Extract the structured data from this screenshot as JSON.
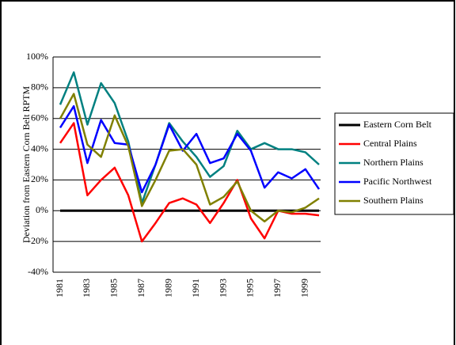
{
  "chart_data": {
    "type": "line",
    "y_label": "Deviation from Eastern Corn Belt RPTM",
    "categories": [
      "1981",
      null,
      "1983",
      null,
      "1985",
      null,
      "1987",
      null,
      "1989",
      null,
      "1991",
      null,
      "1993",
      null,
      "1995",
      null,
      "1997",
      null,
      "1999",
      null
    ],
    "series": [
      {
        "name": "Eastern Corn Belt",
        "color": "#000000",
        "values": [
          0,
          0,
          0,
          0,
          0,
          0,
          0,
          0,
          0,
          0,
          0,
          0,
          0,
          0,
          0,
          0,
          0,
          0,
          0,
          0
        ]
      },
      {
        "name": "Central Plains",
        "color": "#ff0000",
        "values": [
          44,
          57,
          10,
          20,
          28,
          10,
          -20,
          -8,
          5,
          8,
          4,
          -8,
          5,
          20,
          -5,
          -18,
          0,
          -2,
          -2,
          -3
        ]
      },
      {
        "name": "Northern Plains",
        "color": "#008080",
        "values": [
          69,
          90,
          56,
          83,
          70,
          45,
          5,
          30,
          57,
          45,
          35,
          22,
          29,
          52,
          40,
          44,
          40,
          40,
          38,
          30
        ]
      },
      {
        "name": "Pacific Northwest",
        "color": "#0000ff",
        "values": [
          54,
          68,
          31,
          59,
          44,
          43,
          12,
          30,
          56,
          39,
          50,
          31,
          34,
          50,
          39,
          15,
          25,
          21,
          27,
          14
        ]
      },
      {
        "name": "Southern Plains",
        "color": "#808000",
        "values": [
          60,
          76,
          43,
          35,
          62,
          42,
          3,
          20,
          39,
          40,
          30,
          4,
          9,
          19,
          0,
          -7,
          0,
          -1,
          2,
          8
        ]
      }
    ],
    "ylim": [
      -40,
      100
    ],
    "yticks": [
      {
        "value": -40,
        "label": "-40%"
      },
      {
        "value": -20,
        "label": "-20%"
      },
      {
        "value": 0,
        "label": "0%"
      },
      {
        "value": 20,
        "label": "20%"
      },
      {
        "value": 40,
        "label": "40%"
      },
      {
        "value": 60,
        "label": "60%"
      },
      {
        "value": 80,
        "label": "80%"
      },
      {
        "value": 100,
        "label": "100%"
      }
    ],
    "grid": true,
    "legend": "right"
  }
}
